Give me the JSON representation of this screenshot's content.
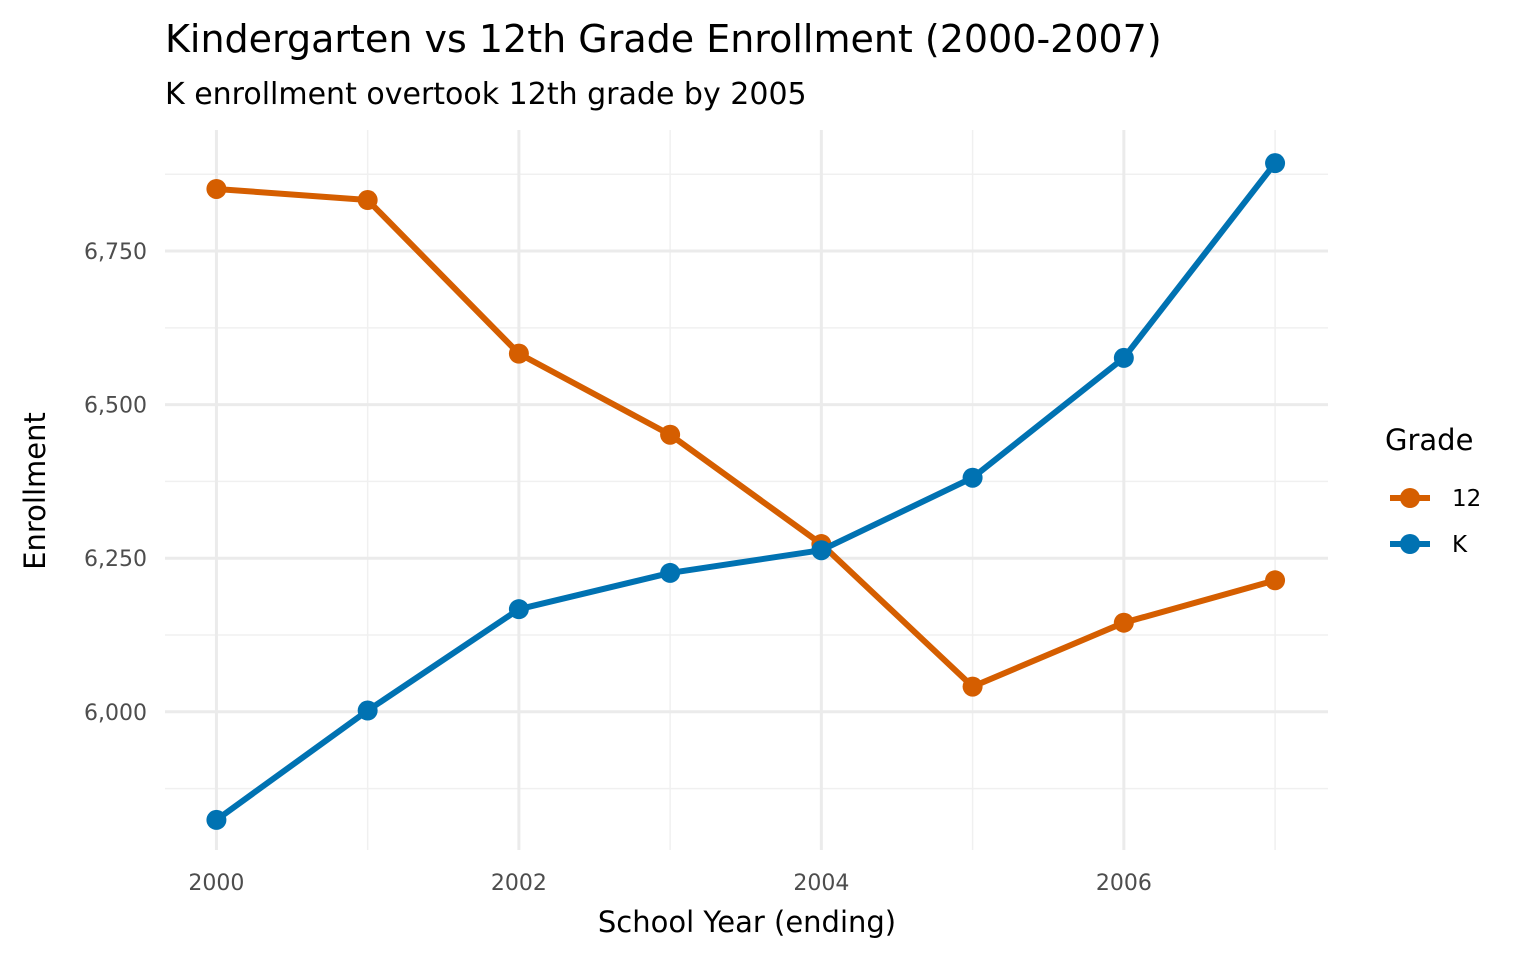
{
  "chart_data": {
    "type": "line",
    "title": "Kindergarten vs 12th Grade Enrollment (2000-2007)",
    "subtitle": "K enrollment overtook 12th grade by 2005",
    "xlabel": "School Year (ending)",
    "ylabel": "Enrollment",
    "x": [
      2000,
      2001,
      2002,
      2003,
      2004,
      2005,
      2006,
      2007
    ],
    "xticks": [
      2000,
      2002,
      2004,
      2006
    ],
    "xtick_labels": [
      "2000",
      "2002",
      "2004",
      "2006"
    ],
    "yticks": [
      6000,
      6250,
      6500,
      6750
    ],
    "ytick_labels": [
      "6,000",
      "6,250",
      "6,500",
      "6,750"
    ],
    "xlim": [
      1999.66,
      2007.35
    ],
    "ylim": [
      5775,
      6947
    ],
    "grid": true,
    "legend": {
      "title": "Grade",
      "position": "right"
    },
    "series": [
      {
        "name": "12",
        "color": "#D55E00",
        "values": [
          6851,
          6833,
          6583,
          6451,
          6273,
          6041,
          6145,
          6214
        ]
      },
      {
        "name": "K",
        "color": "#0072B2",
        "values": [
          5824,
          6002,
          6167,
          6226,
          6263,
          6381,
          6576,
          6893
        ]
      }
    ]
  }
}
